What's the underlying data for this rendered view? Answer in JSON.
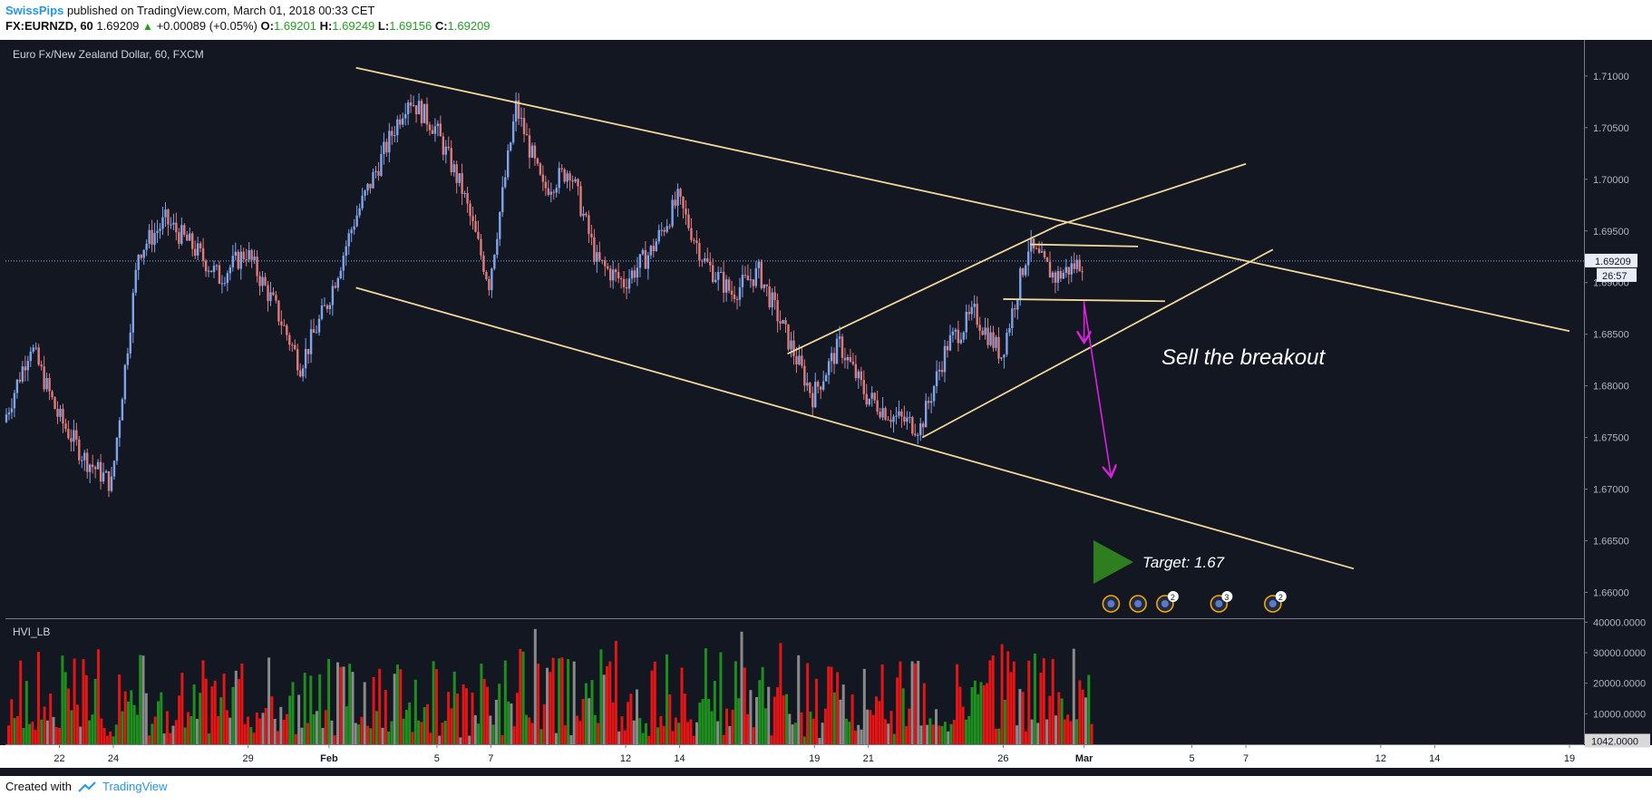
{
  "header": {
    "author": "SwissPips",
    "published": "published on TradingView.com, March 01, 2018 00:33 CET",
    "symbol": "FX:EURNZD, 60",
    "price": "1.69209",
    "change": "+0.00089 (+0.05%)",
    "o_label": "O:",
    "o_value": "1.69201",
    "h_label": "H:",
    "h_value": "1.69249",
    "l_label": "L:",
    "l_value": "1.69156",
    "c_label": "C:",
    "c_value": "1.69209"
  },
  "footer": {
    "created_with": "Created with",
    "brand": "TradingView"
  },
  "colors": {
    "background": "#131722",
    "up_candle": "#7fa4ea",
    "down_candle": "#e07b7b",
    "trendline": "#f2d79a",
    "arrow": "#e020e0",
    "target_marker": "#2e7d1e",
    "volume_red": "#e31515",
    "volume_green": "#1e8f1e",
    "volume_gray": "#8a8a8a"
  },
  "chart_data": {
    "type": "candlestick",
    "title": "Euro Fx/New Zealand Dollar, 60, FXCM",
    "price_ylim": [
      1.6575,
      1.7135
    ],
    "price_ticks": [
      "1.71000",
      "1.70500",
      "1.70000",
      "1.69500",
      "1.69000",
      "1.68500",
      "1.68000",
      "1.67500",
      "1.67000",
      "1.66500",
      "1.66000"
    ],
    "last_price_label": "1.69209",
    "countdown_label": "26:57",
    "last_price": 1.69209,
    "x_labels": [
      "22",
      "24",
      "29",
      "Feb",
      "5",
      "7",
      "12",
      "14",
      "19",
      "21",
      "26",
      "Mar",
      "5",
      "7",
      "12",
      "14",
      "19"
    ],
    "close_path": [
      {
        "date": "2018-01-20",
        "close": 1.6765
      },
      {
        "date": "2018-01-21",
        "close": 1.684
      },
      {
        "date": "2018-01-22",
        "close": 1.6772
      },
      {
        "date": "2018-01-23",
        "close": 1.673
      },
      {
        "date": "2018-01-24",
        "close": 1.6705
      },
      {
        "date": "2018-01-25",
        "close": 1.693
      },
      {
        "date": "2018-01-26",
        "close": 1.696
      },
      {
        "date": "2018-01-27",
        "close": 1.6935
      },
      {
        "date": "2018-01-28",
        "close": 1.6905
      },
      {
        "date": "2018-01-29",
        "close": 1.693
      },
      {
        "date": "2018-01-30",
        "close": 1.688
      },
      {
        "date": "2018-01-31",
        "close": 1.682
      },
      {
        "date": "2018-02-01",
        "close": 1.688
      },
      {
        "date": "2018-02-02",
        "close": 1.696
      },
      {
        "date": "2018-02-03",
        "close": 1.702
      },
      {
        "date": "2018-02-04",
        "close": 1.708
      },
      {
        "date": "2018-02-05",
        "close": 1.705
      },
      {
        "date": "2018-02-06",
        "close": 1.699
      },
      {
        "date": "2018-02-07",
        "close": 1.69
      },
      {
        "date": "2018-02-08",
        "close": 1.707
      },
      {
        "date": "2018-02-09",
        "close": 1.699
      },
      {
        "date": "2018-02-10",
        "close": 1.701
      },
      {
        "date": "2018-02-11",
        "close": 1.692
      },
      {
        "date": "2018-02-12",
        "close": 1.69
      },
      {
        "date": "2018-02-13",
        "close": 1.693
      },
      {
        "date": "2018-02-14",
        "close": 1.698
      },
      {
        "date": "2018-02-15",
        "close": 1.692
      },
      {
        "date": "2018-02-16",
        "close": 1.689
      },
      {
        "date": "2018-02-17",
        "close": 1.691
      },
      {
        "date": "2018-02-18",
        "close": 1.685
      },
      {
        "date": "2018-02-19",
        "close": 1.679
      },
      {
        "date": "2018-02-20",
        "close": 1.684
      },
      {
        "date": "2018-02-21",
        "close": 1.679
      },
      {
        "date": "2018-02-22",
        "close": 1.677
      },
      {
        "date": "2018-02-23",
        "close": 1.676
      },
      {
        "date": "2018-02-24",
        "close": 1.684
      },
      {
        "date": "2018-02-25",
        "close": 1.687
      },
      {
        "date": "2018-02-26",
        "close": 1.683
      },
      {
        "date": "2018-02-27",
        "close": 1.6935
      },
      {
        "date": "2018-02-28",
        "close": 1.6905
      },
      {
        "date": "2018-03-01",
        "close": 1.6921
      }
    ],
    "annotations": {
      "text": "Sell the breakout",
      "target": "Target: 1.67",
      "trendlines": [
        {
          "from": {
            "date": "2018-02-02",
            "price": 1.7108
          },
          "to": {
            "date": "2018-03-19",
            "price": 1.6853
          }
        },
        {
          "from": {
            "date": "2018-02-02",
            "price": 1.6895
          },
          "to": {
            "date": "2018-03-11",
            "price": 1.6623
          }
        },
        {
          "from": {
            "date": "2018-02-18",
            "price": 1.6831
          },
          "to": {
            "date": "2018-02-28",
            "price": 1.6955
          }
        },
        {
          "from": {
            "date": "2018-02-28",
            "price": 1.6955
          },
          "to": {
            "date": "2018-03-07",
            "price": 1.7015
          }
        },
        {
          "from": {
            "date": "2018-02-23",
            "price": 1.675
          },
          "to": {
            "date": "2018-03-08",
            "price": 1.6932
          }
        },
        {
          "from": {
            "date": "2018-02-27",
            "price": 1.6937
          },
          "to": {
            "date": "2018-03-03",
            "price": 1.6935
          }
        },
        {
          "from": {
            "date": "2018-02-26",
            "price": 1.6884
          },
          "to": {
            "date": "2018-03-04",
            "price": 1.6882
          }
        }
      ],
      "arrows": [
        {
          "from": {
            "date": "2018-03-01",
            "price": 1.6882
          },
          "to": {
            "date": "2018-03-01",
            "price": 1.6842
          }
        },
        {
          "from": {
            "date": "2018-03-01",
            "price": 1.688
          },
          "to": {
            "date": "2018-03-02",
            "price": 1.6712
          }
        }
      ],
      "events": [
        {
          "date": "2018-03-02",
          "count": ""
        },
        {
          "date": "2018-03-03",
          "count": ""
        },
        {
          "date": "2018-03-04",
          "count": "2"
        },
        {
          "date": "2018-03-06",
          "count": "3"
        },
        {
          "date": "2018-03-08",
          "count": "2"
        }
      ]
    },
    "volume": {
      "indicator": "HVI_LB",
      "ylim": [
        0,
        41000
      ],
      "ticks": [
        "40000.0000",
        "30000.0000",
        "20000.0000",
        "10000.0000"
      ],
      "last_value_label": "1042.0000",
      "last_value": 1042
    }
  }
}
